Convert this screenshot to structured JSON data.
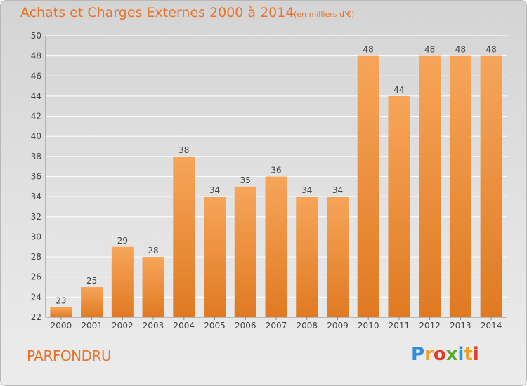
{
  "title": "Achats et Charges Externes 2000 à 2014",
  "unit_label": "(en milliers d'€)",
  "commune": "PARFONDRU",
  "logo": {
    "text": "Proxiti",
    "letters": [
      {
        "ch": "P",
        "color": "#2f8fd8"
      },
      {
        "ch": "r",
        "color": "#f0a020"
      },
      {
        "ch": "o",
        "color": "#e03b2f"
      },
      {
        "ch": "x",
        "color": "#5aaa2a"
      },
      {
        "ch": "i",
        "color": "#2f8fd8"
      },
      {
        "ch": "t",
        "color": "#f0a020"
      },
      {
        "ch": "i",
        "color": "#e03b2f"
      }
    ]
  },
  "colors": {
    "bar_light": "#f7a55a",
    "bar_dark": "#df7a22",
    "text": "#e8742a",
    "axis_text": "#444444",
    "grid": "#ffffff"
  },
  "chart_data": {
    "type": "bar",
    "title": "Achats et Charges Externes 2000 à 2014",
    "ylabel": "",
    "xlabel": "",
    "categories": [
      "2000",
      "2001",
      "2002",
      "2003",
      "2004",
      "2005",
      "2006",
      "2007",
      "2008",
      "2009",
      "2010",
      "2011",
      "2012",
      "2013",
      "2014"
    ],
    "values": [
      23,
      25,
      29,
      28,
      38,
      34,
      35,
      36,
      34,
      34,
      48,
      44,
      48,
      48,
      48
    ],
    "ylim": [
      22,
      50
    ],
    "yticks": [
      22,
      24,
      26,
      28,
      30,
      32,
      34,
      36,
      38,
      40,
      42,
      44,
      46,
      48,
      50
    ],
    "grid": true
  }
}
